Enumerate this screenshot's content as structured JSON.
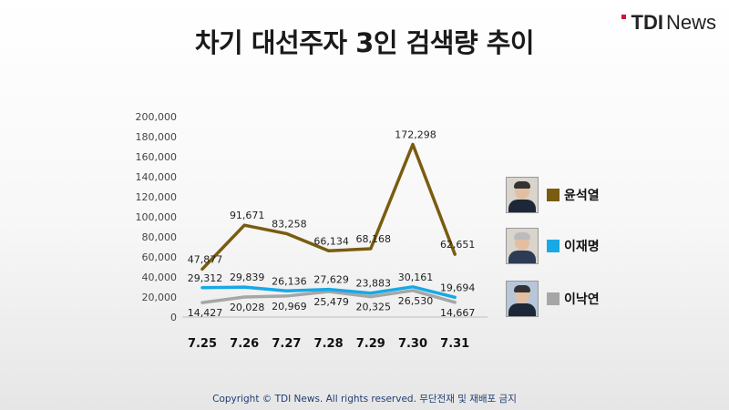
{
  "header": {
    "title": "차기 대선주자 3인 검색량 추이",
    "logo_strong": "TDI",
    "logo_light": "News"
  },
  "footer": {
    "text": "Copyright © TDI News. All rights reserved. 무단전재 및 재배포 금지"
  },
  "colors": {
    "series_1": "#7a5c10",
    "series_2": "#17a9e6",
    "series_3": "#a6a6a6"
  },
  "chart_data": {
    "type": "line",
    "title": "차기 대선주자 3인 검색량 추이",
    "categories": [
      "7.25",
      "7.26",
      "7.27",
      "7.28",
      "7.29",
      "7.30",
      "7.31"
    ],
    "ylim": [
      0,
      200000
    ],
    "yticks": [
      "0",
      "20,000",
      "40,000",
      "60,000",
      "80,000",
      "100,000",
      "120,000",
      "140,000",
      "160,000",
      "180,000",
      "200,000"
    ],
    "grid": false,
    "legend_position": "right",
    "series": [
      {
        "name": "윤석열",
        "values": [
          47877,
          91671,
          83258,
          66134,
          68168,
          172298,
          62651
        ],
        "labels": [
          "47,877",
          "91,671",
          "83,258",
          "66,134",
          "68,168",
          "172,298",
          "62,651"
        ],
        "color": "#7a5c10"
      },
      {
        "name": "이재명",
        "values": [
          29312,
          29839,
          26136,
          27629,
          23883,
          30161,
          19694
        ],
        "labels": [
          "29,312",
          "29,839",
          "26,136",
          "27,629",
          "23,883",
          "30,161",
          "19,694"
        ],
        "color": "#17a9e6"
      },
      {
        "name": "이낙연",
        "values": [
          14427,
          20028,
          20969,
          25479,
          20325,
          26530,
          14667
        ],
        "labels": [
          "14,427",
          "20,028",
          "20,969",
          "25,479",
          "20,325",
          "26,530",
          "14,667"
        ],
        "color": "#a6a6a6"
      }
    ]
  }
}
